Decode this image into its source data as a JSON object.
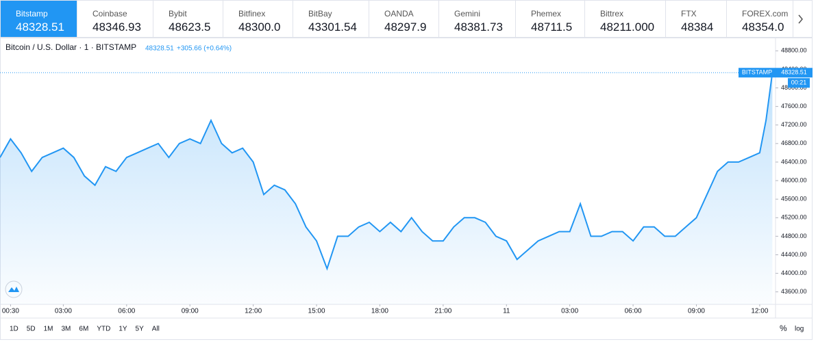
{
  "tabs": [
    {
      "name": "Bitstamp",
      "price": "48328.51"
    },
    {
      "name": "Coinbase",
      "price": "48346.93"
    },
    {
      "name": "Bybit",
      "price": "48623.5"
    },
    {
      "name": "Bitfinex",
      "price": "48300.0"
    },
    {
      "name": "BitBay",
      "price": "43301.54"
    },
    {
      "name": "OANDA",
      "price": "48297.9"
    },
    {
      "name": "Gemini",
      "price": "48381.73"
    },
    {
      "name": "Phemex",
      "price": "48711.5"
    },
    {
      "name": "Bittrex",
      "price": "48211.000"
    },
    {
      "name": "FTX",
      "price": "48384"
    },
    {
      "name": "FOREX.com",
      "price": "48354.0"
    }
  ],
  "chart_data": {
    "type": "line",
    "title": "Bitcoin / U.S. Dollar · 1 · BITSTAMP",
    "change": "+305.66 (+0.64%)",
    "countdown": "00:21",
    "x": [
      0,
      0.5,
      1,
      1.5,
      2,
      2.5,
      3,
      3.5,
      4,
      4.5,
      5,
      5.5,
      6,
      6.5,
      7,
      7.5,
      8,
      8.5,
      9,
      9.5,
      10,
      10.5,
      11,
      11.5,
      12,
      12.5,
      13,
      13.5,
      14,
      14.5,
      15,
      15.5,
      16,
      16.5,
      17,
      17.5,
      18,
      18.5,
      19,
      19.5,
      20,
      20.5,
      21,
      21.5,
      22,
      22.5,
      23,
      23.5,
      24,
      24.5,
      25,
      25.5,
      26,
      26.5,
      27,
      27.5,
      28,
      28.5,
      29,
      29.5,
      30,
      30.5,
      31,
      31.5,
      32,
      32.5,
      33,
      33.5,
      34,
      34.5,
      35,
      35.5,
      36,
      36.3,
      36.6
    ],
    "series": [
      {
        "name": "BITSTAMP",
        "color": "#2196f3",
        "values": [
          46500,
          46900,
          46600,
          46200,
          46500,
          46600,
          46700,
          46500,
          46100,
          45900,
          46300,
          46200,
          46500,
          46600,
          46700,
          46800,
          46500,
          46800,
          46900,
          46800,
          47300,
          46800,
          46600,
          46700,
          46400,
          45700,
          45900,
          45800,
          45500,
          45000,
          44700,
          44100,
          44800,
          44800,
          45000,
          45100,
          44900,
          45100,
          44900,
          45200,
          44900,
          44700,
          44700,
          45000,
          45200,
          45200,
          45100,
          44800,
          44700,
          44300,
          44500,
          44700,
          44800,
          44900,
          44900,
          45500,
          44800,
          44800,
          44900,
          44900,
          44700,
          45000,
          45000,
          44800,
          44800,
          45000,
          45200,
          45700,
          46200,
          46400,
          46400,
          46500,
          46600,
          47300,
          48328.51
        ]
      }
    ],
    "xlim": [
      0,
      36.75
    ],
    "ylim": [
      43330,
      49070
    ],
    "xticks": [
      {
        "value": 0.5,
        "label": "00:30"
      },
      {
        "value": 3,
        "label": "03:00"
      },
      {
        "value": 6,
        "label": "06:00"
      },
      {
        "value": 9,
        "label": "09:00"
      },
      {
        "value": 12,
        "label": "12:00"
      },
      {
        "value": 15,
        "label": "15:00"
      },
      {
        "value": 18,
        "label": "18:00"
      },
      {
        "value": 21,
        "label": "21:00"
      },
      {
        "value": 24,
        "label": "11"
      },
      {
        "value": 27,
        "label": "03:00"
      },
      {
        "value": 30,
        "label": "06:00"
      },
      {
        "value": 33,
        "label": "09:00"
      },
      {
        "value": 36,
        "label": "12:00"
      }
    ],
    "yticks": [
      {
        "value": 43600,
        "label": "43600.00"
      },
      {
        "value": 44000,
        "label": "44000.00"
      },
      {
        "value": 44400,
        "label": "44400.00"
      },
      {
        "value": 44800,
        "label": "44800.00"
      },
      {
        "value": 45200,
        "label": "45200.00"
      },
      {
        "value": 45600,
        "label": "45600.00"
      },
      {
        "value": 46000,
        "label": "46000.00"
      },
      {
        "value": 46400,
        "label": "46400.00"
      },
      {
        "value": 46800,
        "label": "46800.00"
      },
      {
        "value": 47200,
        "label": "47200.00"
      },
      {
        "value": 47600,
        "label": "47600.00"
      },
      {
        "value": 48000,
        "label": "48000.00"
      },
      {
        "value": 48400,
        "label": "48400.00"
      },
      {
        "value": 48800,
        "label": "48800.00"
      }
    ]
  },
  "ranges": [
    "1D",
    "5D",
    "1M",
    "3M",
    "6M",
    "YTD",
    "1Y",
    "5Y",
    "All"
  ],
  "scale_buttons": [
    "%",
    "log"
  ]
}
